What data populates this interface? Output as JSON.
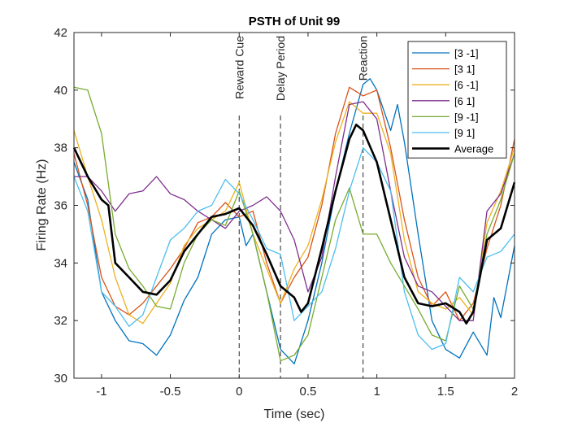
{
  "chart_data": {
    "type": "line",
    "title": "PSTH of Unit 99",
    "xlabel": "Time (sec)",
    "ylabel": "Firing Rate (Hz)",
    "xlim": [
      -1.2,
      2
    ],
    "ylim": [
      30,
      42
    ],
    "xticks": [
      -1,
      -0.5,
      0,
      0.5,
      1,
      1.5,
      2
    ],
    "xtick_labels": [
      "-1",
      "-0.5",
      "0",
      "0.5",
      "1",
      "1.5",
      "2"
    ],
    "yticks": [
      30,
      32,
      34,
      36,
      38,
      40,
      42
    ],
    "ytick_labels": [
      "30",
      "32",
      "34",
      "36",
      "38",
      "40",
      "42"
    ],
    "grid": false,
    "legend_position": "top-right",
    "events": [
      {
        "x": 0,
        "label": "Reward Cue"
      },
      {
        "x": 0.3,
        "label": "Delay Period"
      },
      {
        "x": 0.9,
        "label": "Reaction"
      }
    ],
    "series": [
      {
        "name": "[3 -1]",
        "color": "#0072BD",
        "width": 1.3,
        "points": [
          [
            -1.2,
            37.5
          ],
          [
            -1.1,
            36.2
          ],
          [
            -1.0,
            33.0
          ],
          [
            -0.9,
            32.0
          ],
          [
            -0.8,
            31.3
          ],
          [
            -0.7,
            31.2
          ],
          [
            -0.6,
            30.8
          ],
          [
            -0.5,
            31.5
          ],
          [
            -0.4,
            32.7
          ],
          [
            -0.3,
            33.5
          ],
          [
            -0.2,
            35.0
          ],
          [
            -0.1,
            35.5
          ],
          [
            0.0,
            35.6
          ],
          [
            0.05,
            34.6
          ],
          [
            0.1,
            35.0
          ],
          [
            0.2,
            33.0
          ],
          [
            0.3,
            31.0
          ],
          [
            0.4,
            30.5
          ],
          [
            0.5,
            32.0
          ],
          [
            0.6,
            34.0
          ],
          [
            0.7,
            36.5
          ],
          [
            0.8,
            38.5
          ],
          [
            0.9,
            40.2
          ],
          [
            0.95,
            40.4
          ],
          [
            1.0,
            40.0
          ],
          [
            1.1,
            38.6
          ],
          [
            1.15,
            39.5
          ],
          [
            1.2,
            38.2
          ],
          [
            1.3,
            35.0
          ],
          [
            1.4,
            32.0
          ],
          [
            1.5,
            31.0
          ],
          [
            1.6,
            30.7
          ],
          [
            1.7,
            31.6
          ],
          [
            1.8,
            30.8
          ],
          [
            1.85,
            32.8
          ],
          [
            1.9,
            32.1
          ],
          [
            2.0,
            34.6
          ]
        ]
      },
      {
        "name": "[3 1]",
        "color": "#D95319",
        "width": 1.3,
        "points": [
          [
            -1.2,
            37.8
          ],
          [
            -1.1,
            36.0
          ],
          [
            -1.0,
            33.5
          ],
          [
            -0.9,
            32.5
          ],
          [
            -0.8,
            32.2
          ],
          [
            -0.7,
            32.6
          ],
          [
            -0.6,
            33.2
          ],
          [
            -0.5,
            33.8
          ],
          [
            -0.4,
            34.5
          ],
          [
            -0.3,
            35.4
          ],
          [
            -0.2,
            35.6
          ],
          [
            -0.1,
            36.1
          ],
          [
            0.0,
            35.6
          ],
          [
            0.1,
            35.8
          ],
          [
            0.2,
            34.0
          ],
          [
            0.3,
            32.6
          ],
          [
            0.4,
            33.5
          ],
          [
            0.5,
            34.2
          ],
          [
            0.6,
            36.0
          ],
          [
            0.7,
            38.5
          ],
          [
            0.8,
            40.1
          ],
          [
            0.9,
            39.8
          ],
          [
            1.0,
            40.0
          ],
          [
            1.1,
            38.0
          ],
          [
            1.2,
            35.5
          ],
          [
            1.3,
            33.5
          ],
          [
            1.4,
            32.5
          ],
          [
            1.5,
            33.0
          ],
          [
            1.6,
            32.0
          ],
          [
            1.7,
            32.6
          ],
          [
            1.8,
            34.5
          ],
          [
            1.9,
            36.0
          ],
          [
            2.0,
            38.3
          ]
        ]
      },
      {
        "name": "[6 -1]",
        "color": "#EDB120",
        "width": 1.3,
        "points": [
          [
            -1.2,
            38.6
          ],
          [
            -1.1,
            37.0
          ],
          [
            -1.0,
            35.5
          ],
          [
            -0.9,
            33.5
          ],
          [
            -0.8,
            32.2
          ],
          [
            -0.7,
            31.9
          ],
          [
            -0.6,
            32.6
          ],
          [
            -0.5,
            33.3
          ],
          [
            -0.4,
            34.6
          ],
          [
            -0.3,
            35.2
          ],
          [
            -0.2,
            35.5
          ],
          [
            -0.1,
            35.8
          ],
          [
            0.0,
            36.8
          ],
          [
            0.1,
            35.0
          ],
          [
            0.2,
            33.8
          ],
          [
            0.3,
            32.6
          ],
          [
            0.4,
            33.8
          ],
          [
            0.5,
            34.6
          ],
          [
            0.6,
            36.2
          ],
          [
            0.7,
            38.2
          ],
          [
            0.8,
            39.6
          ],
          [
            0.9,
            39.2
          ],
          [
            1.0,
            39.2
          ],
          [
            1.1,
            37.8
          ],
          [
            1.2,
            34.8
          ],
          [
            1.3,
            33.0
          ],
          [
            1.4,
            32.6
          ],
          [
            1.5,
            32.4
          ],
          [
            1.6,
            32.8
          ],
          [
            1.7,
            32.2
          ],
          [
            1.8,
            35.4
          ],
          [
            1.9,
            36.5
          ],
          [
            2.0,
            38.0
          ]
        ]
      },
      {
        "name": "[6 1]",
        "color": "#7E2F8E",
        "width": 1.3,
        "points": [
          [
            -1.2,
            37.0
          ],
          [
            -1.1,
            37.0
          ],
          [
            -1.0,
            36.5
          ],
          [
            -0.9,
            35.8
          ],
          [
            -0.8,
            36.4
          ],
          [
            -0.7,
            36.5
          ],
          [
            -0.6,
            37.0
          ],
          [
            -0.5,
            36.4
          ],
          [
            -0.4,
            36.2
          ],
          [
            -0.3,
            35.8
          ],
          [
            -0.2,
            35.5
          ],
          [
            -0.1,
            35.2
          ],
          [
            0.0,
            35.8
          ],
          [
            0.1,
            36.0
          ],
          [
            0.2,
            36.3
          ],
          [
            0.3,
            35.8
          ],
          [
            0.4,
            34.8
          ],
          [
            0.5,
            33.0
          ],
          [
            0.6,
            34.2
          ],
          [
            0.7,
            37.0
          ],
          [
            0.8,
            39.5
          ],
          [
            0.9,
            39.6
          ],
          [
            1.0,
            39.0
          ],
          [
            1.1,
            36.5
          ],
          [
            1.2,
            34.2
          ],
          [
            1.3,
            33.2
          ],
          [
            1.4,
            33.0
          ],
          [
            1.5,
            32.5
          ],
          [
            1.6,
            32.0
          ],
          [
            1.7,
            32.0
          ],
          [
            1.8,
            35.8
          ],
          [
            1.9,
            36.4
          ],
          [
            2.0,
            37.8
          ]
        ]
      },
      {
        "name": "[9 -1]",
        "color": "#77AC30",
        "width": 1.3,
        "points": [
          [
            -1.2,
            40.1
          ],
          [
            -1.1,
            40.0
          ],
          [
            -1.0,
            38.5
          ],
          [
            -0.9,
            35.0
          ],
          [
            -0.8,
            33.8
          ],
          [
            -0.7,
            33.2
          ],
          [
            -0.6,
            32.5
          ],
          [
            -0.5,
            32.4
          ],
          [
            -0.4,
            34.0
          ],
          [
            -0.3,
            35.0
          ],
          [
            -0.2,
            35.5
          ],
          [
            -0.1,
            35.3
          ],
          [
            0.0,
            36.5
          ],
          [
            0.1,
            35.0
          ],
          [
            0.2,
            33.0
          ],
          [
            0.3,
            30.6
          ],
          [
            0.4,
            30.8
          ],
          [
            0.5,
            31.5
          ],
          [
            0.6,
            33.5
          ],
          [
            0.7,
            35.5
          ],
          [
            0.8,
            36.6
          ],
          [
            0.9,
            35.0
          ],
          [
            1.0,
            35.0
          ],
          [
            1.1,
            34.0
          ],
          [
            1.2,
            33.2
          ],
          [
            1.3,
            32.4
          ],
          [
            1.4,
            31.5
          ],
          [
            1.5,
            31.3
          ],
          [
            1.6,
            33.2
          ],
          [
            1.7,
            32.4
          ],
          [
            1.8,
            35.0
          ],
          [
            1.9,
            36.2
          ],
          [
            2.0,
            37.8
          ]
        ]
      },
      {
        "name": "[9 1]",
        "color": "#4DBEEE",
        "width": 1.3,
        "points": [
          [
            -1.2,
            37.0
          ],
          [
            -1.1,
            35.8
          ],
          [
            -1.0,
            33.0
          ],
          [
            -0.9,
            32.5
          ],
          [
            -0.8,
            31.8
          ],
          [
            -0.7,
            32.2
          ],
          [
            -0.6,
            33.5
          ],
          [
            -0.5,
            34.8
          ],
          [
            -0.4,
            35.2
          ],
          [
            -0.3,
            35.8
          ],
          [
            -0.2,
            36.0
          ],
          [
            -0.1,
            36.9
          ],
          [
            0.0,
            36.4
          ],
          [
            0.1,
            35.5
          ],
          [
            0.2,
            34.5
          ],
          [
            0.3,
            34.3
          ],
          [
            0.4,
            32.0
          ],
          [
            0.5,
            32.5
          ],
          [
            0.6,
            33.0
          ],
          [
            0.7,
            34.5
          ],
          [
            0.8,
            36.5
          ],
          [
            0.9,
            38.0
          ],
          [
            1.0,
            37.5
          ],
          [
            1.1,
            36.5
          ],
          [
            1.2,
            33.0
          ],
          [
            1.3,
            31.5
          ],
          [
            1.4,
            31.0
          ],
          [
            1.5,
            31.2
          ],
          [
            1.6,
            33.5
          ],
          [
            1.7,
            33.0
          ],
          [
            1.8,
            34.2
          ],
          [
            1.9,
            34.4
          ],
          [
            2.0,
            35.0
          ]
        ]
      },
      {
        "name": "Average",
        "color": "#000000",
        "width": 2.6,
        "points": [
          [
            -1.2,
            38.0
          ],
          [
            -1.1,
            37.0
          ],
          [
            -1.0,
            36.2
          ],
          [
            -0.95,
            36.0
          ],
          [
            -0.9,
            34.0
          ],
          [
            -0.8,
            33.5
          ],
          [
            -0.7,
            33.0
          ],
          [
            -0.6,
            32.9
          ],
          [
            -0.5,
            33.4
          ],
          [
            -0.4,
            34.4
          ],
          [
            -0.3,
            35.0
          ],
          [
            -0.2,
            35.6
          ],
          [
            -0.1,
            35.7
          ],
          [
            0.0,
            35.9
          ],
          [
            0.1,
            35.3
          ],
          [
            0.2,
            34.3
          ],
          [
            0.3,
            33.2
          ],
          [
            0.4,
            32.8
          ],
          [
            0.45,
            32.3
          ],
          [
            0.5,
            32.6
          ],
          [
            0.6,
            34.5
          ],
          [
            0.7,
            36.5
          ],
          [
            0.8,
            38.3
          ],
          [
            0.85,
            38.8
          ],
          [
            0.9,
            38.6
          ],
          [
            1.0,
            37.5
          ],
          [
            1.1,
            35.5
          ],
          [
            1.2,
            33.5
          ],
          [
            1.3,
            32.6
          ],
          [
            1.4,
            32.5
          ],
          [
            1.5,
            32.6
          ],
          [
            1.6,
            32.3
          ],
          [
            1.65,
            31.9
          ],
          [
            1.7,
            32.3
          ],
          [
            1.8,
            34.8
          ],
          [
            1.9,
            35.2
          ],
          [
            2.0,
            36.8
          ]
        ]
      }
    ]
  }
}
